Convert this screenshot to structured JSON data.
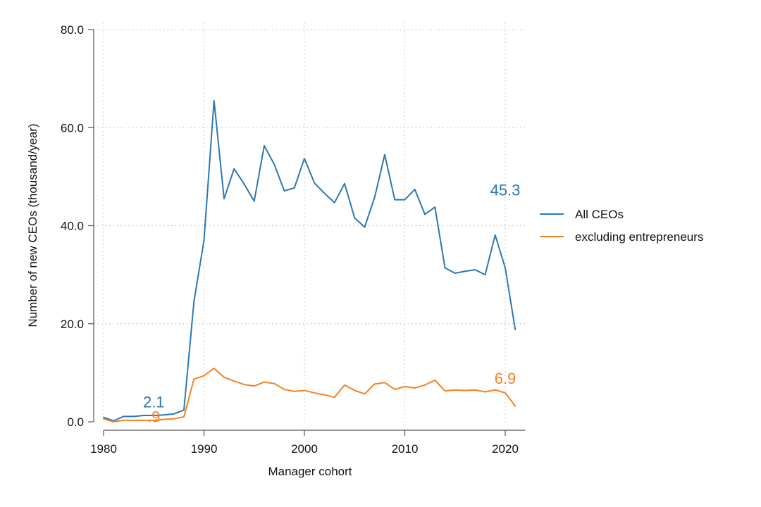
{
  "chart_data": {
    "type": "line",
    "title": "",
    "xlabel": "Manager cohort",
    "ylabel": "Number of new CEOs (thousand/year)",
    "xlim": [
      1980,
      2022
    ],
    "ylim": [
      0,
      80
    ],
    "grid": true,
    "legend_position": "right",
    "x_ticks": [
      1980,
      1990,
      2000,
      2010,
      2020
    ],
    "x_tick_labels": [
      "1980",
      "1990",
      "2000",
      "2010",
      "2020"
    ],
    "y_ticks": [
      0,
      20,
      40,
      60,
      80
    ],
    "y_tick_labels": [
      "0.0",
      "20.0",
      "40.0",
      "60.0",
      "80.0"
    ],
    "x": [
      1980,
      1981,
      1982,
      1983,
      1984,
      1985,
      1986,
      1987,
      1988,
      1989,
      1990,
      1991,
      1992,
      1993,
      1994,
      1995,
      1996,
      1997,
      1998,
      1999,
      2000,
      2001,
      2002,
      2003,
      2004,
      2005,
      2006,
      2007,
      2008,
      2009,
      2010,
      2011,
      2012,
      2013,
      2014,
      2015,
      2016,
      2017,
      2018,
      2019,
      2020,
      2021
    ],
    "series": [
      {
        "name": "All CEOs",
        "color": "#2b78b4",
        "values": [
          0.9,
          0.2,
          1.1,
          1.1,
          1.3,
          1.3,
          1.4,
          1.6,
          2.4,
          24.5,
          37.0,
          65.5,
          45.5,
          51.6,
          48.5,
          45.0,
          56.3,
          52.5,
          47.1,
          47.7,
          53.7,
          48.7,
          46.6,
          44.7,
          48.6,
          41.6,
          39.7,
          45.8,
          54.5,
          45.3,
          45.3,
          47.4,
          42.3,
          43.8,
          31.4,
          30.3,
          30.7,
          31.0,
          30.0,
          38.1,
          31.4,
          18.8
        ]
      },
      {
        "name": "excluding entrepreneurs",
        "color": "#f58220",
        "values": [
          0.6,
          0.0,
          0.3,
          0.3,
          0.3,
          0.3,
          0.5,
          0.6,
          1.0,
          8.7,
          9.4,
          10.9,
          9.1,
          8.3,
          7.6,
          7.3,
          8.1,
          7.8,
          6.6,
          6.2,
          6.4,
          5.9,
          5.5,
          5.0,
          7.5,
          6.4,
          5.7,
          7.7,
          8.0,
          6.6,
          7.2,
          6.9,
          7.5,
          8.5,
          6.3,
          6.5,
          6.4,
          6.5,
          6.1,
          6.5,
          5.9,
          3.2
        ]
      }
    ],
    "annotations": [
      {
        "text": "2.1",
        "x": 1985,
        "y": 2.1,
        "color": "#2b78b4"
      },
      {
        "text": ".9",
        "x": 1985,
        "y": -0.9,
        "color": "#f58220"
      },
      {
        "text": "45.3",
        "x": 2020,
        "y": 45.3,
        "color": "#2b78b4"
      },
      {
        "text": "6.9",
        "x": 2020,
        "y": 6.9,
        "color": "#f58220"
      }
    ]
  }
}
